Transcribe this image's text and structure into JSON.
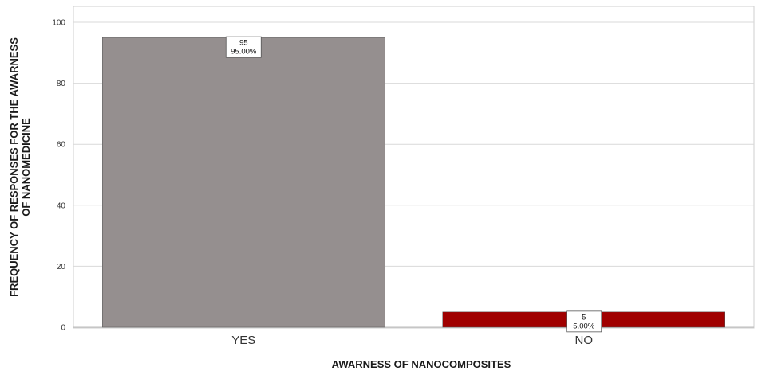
{
  "chart_data": {
    "type": "bar",
    "categories": [
      "YES",
      "NO"
    ],
    "values": [
      95,
      5
    ],
    "data_labels": [
      {
        "count": "95",
        "percent": "95.00%"
      },
      {
        "count": "5",
        "percent": "5.00%"
      }
    ],
    "xlabel": "AWARNESS OF NANOCOMPOSITES",
    "ylabel_lines": [
      "FREQUENCY OF RESPONSES FOR THE AWARNESS",
      "OF NANOMEDICINE"
    ],
    "ylim": [
      0,
      100
    ],
    "yticks": [
      0,
      20,
      40,
      60,
      80,
      100
    ],
    "grid": true,
    "bar_colors": [
      "#958f8f",
      "#a00000"
    ]
  }
}
